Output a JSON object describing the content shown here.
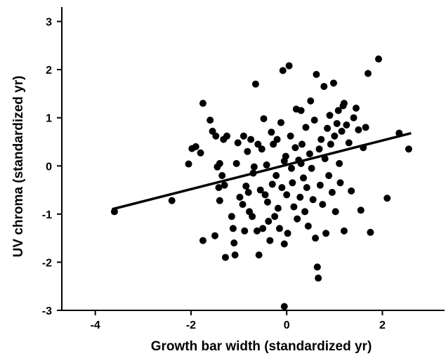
{
  "chart_data": {
    "type": "scatter",
    "title": "",
    "xlabel": "Growth bar width (standardized yr)",
    "ylabel": "UV chroma (standardized yr)",
    "xlim": [
      -4.7,
      3.3
    ],
    "ylim": [
      -3,
      3.3
    ],
    "x_ticks": [
      "-4",
      "-2",
      "0",
      "2"
    ],
    "y_ticks": [
      "-3",
      "-2",
      "-1",
      "0",
      "1",
      "2",
      "3"
    ],
    "grid": false,
    "colors": {
      "points": "#000000",
      "axes": "#000000"
    },
    "trend_line": {
      "x": [
        -3.65,
        2.6
      ],
      "y": [
        -0.9,
        0.68
      ]
    },
    "series": [
      {
        "points": [
          [
            -3.6,
            -0.95
          ],
          [
            -2.4,
            -0.72
          ],
          [
            -2.05,
            0.04
          ],
          [
            -1.98,
            0.36
          ],
          [
            -1.9,
            0.4
          ],
          [
            -1.8,
            0.27
          ],
          [
            -1.75,
            1.3
          ],
          [
            -1.75,
            -1.55
          ],
          [
            -1.6,
            0.95
          ],
          [
            -1.55,
            0.72
          ],
          [
            -1.48,
            0.62
          ],
          [
            -1.45,
            -0.02
          ],
          [
            -1.42,
            -0.45
          ],
          [
            -1.4,
            -0.72
          ],
          [
            -1.5,
            -1.45
          ],
          [
            -1.3,
            -0.4
          ],
          [
            -1.32,
            0.55
          ],
          [
            -1.28,
            -1.9
          ],
          [
            -1.25,
            0.62
          ],
          [
            -1.4,
            0.05
          ],
          [
            -1.35,
            -0.2
          ],
          [
            -1.15,
            -1.05
          ],
          [
            -1.12,
            -1.3
          ],
          [
            -1.1,
            -1.6
          ],
          [
            -1.08,
            -1.85
          ],
          [
            -1.05,
            0.05
          ],
          [
            -1.02,
            0.48
          ],
          [
            -0.98,
            -0.65
          ],
          [
            -0.92,
            -0.8
          ],
          [
            -0.9,
            0.62
          ],
          [
            -0.88,
            -1.35
          ],
          [
            -0.85,
            -0.42
          ],
          [
            -0.82,
            0.3
          ],
          [
            -0.8,
            -0.55
          ],
          [
            -0.78,
            -0.95
          ],
          [
            -0.75,
            0.55
          ],
          [
            -0.72,
            -1.05
          ],
          [
            -0.7,
            -0.15
          ],
          [
            -0.68,
            -0.02
          ],
          [
            -0.65,
            1.7
          ],
          [
            -0.62,
            -1.35
          ],
          [
            -0.6,
            0.45
          ],
          [
            -0.58,
            -1.85
          ],
          [
            -0.55,
            -0.5
          ],
          [
            -0.52,
            0.35
          ],
          [
            -0.5,
            -1.3
          ],
          [
            -0.48,
            0.98
          ],
          [
            -0.45,
            -0.6
          ],
          [
            -0.42,
            0.02
          ],
          [
            -0.4,
            -0.75
          ],
          [
            -0.38,
            -1.15
          ],
          [
            -0.35,
            -1.55
          ],
          [
            -0.32,
            0.7
          ],
          [
            -0.3,
            -0.38
          ],
          [
            -0.28,
            0.45
          ],
          [
            -0.25,
            -1.05
          ],
          [
            -0.22,
            -0.2
          ],
          [
            -0.2,
            0.55
          ],
          [
            -0.18,
            -0.88
          ],
          [
            -0.15,
            -1.3
          ],
          [
            -0.12,
            0.9
          ],
          [
            -0.1,
            -0.45
          ],
          [
            -0.08,
            1.98
          ],
          [
            -0.05,
            -1.62
          ],
          [
            -0.05,
            0.1
          ],
          [
            -0.02,
            0.2
          ],
          [
            0.0,
            -0.6
          ],
          [
            0.02,
            -1.4
          ],
          [
            0.05,
            2.08
          ],
          [
            0.08,
            0.62
          ],
          [
            0.1,
            -0.05
          ],
          [
            0.12,
            -0.35
          ],
          [
            0.15,
            -0.85
          ],
          [
            0.18,
            0.38
          ],
          [
            0.2,
            1.18
          ],
          [
            0.22,
            -1.1
          ],
          [
            0.25,
            0.12
          ],
          [
            0.28,
            -0.65
          ],
          [
            0.3,
            1.15
          ],
          [
            0.32,
            0.45
          ],
          [
            0.35,
            -0.25
          ],
          [
            0.38,
            -0.95
          ],
          [
            0.4,
            0.8
          ],
          [
            0.42,
            -0.45
          ],
          [
            0.45,
            -1.25
          ],
          [
            0.48,
            0.25
          ],
          [
            0.5,
            1.35
          ],
          [
            0.52,
            -0.05
          ],
          [
            0.55,
            -0.7
          ],
          [
            0.58,
            0.95
          ],
          [
            0.6,
            -1.5
          ],
          [
            0.62,
            1.9
          ],
          [
            0.64,
            -2.1
          ],
          [
            0.66,
            -2.33
          ],
          [
            0.68,
            0.35
          ],
          [
            0.7,
            -0.4
          ],
          [
            0.72,
            0.55
          ],
          [
            0.75,
            -0.8
          ],
          [
            0.78,
            1.65
          ],
          [
            0.8,
            0.15
          ],
          [
            0.82,
            -1.4
          ],
          [
            0.85,
            0.78
          ],
          [
            0.88,
            -0.2
          ],
          [
            0.9,
            1.05
          ],
          [
            0.92,
            0.45
          ],
          [
            0.95,
            -0.55
          ],
          [
            0.98,
            1.72
          ],
          [
            1.0,
            0.62
          ],
          [
            1.02,
            -0.95
          ],
          [
            1.05,
            0.88
          ],
          [
            1.08,
            1.15
          ],
          [
            1.1,
            0.05
          ],
          [
            1.12,
            -0.35
          ],
          [
            1.15,
            0.72
          ],
          [
            1.18,
            1.25
          ],
          [
            1.2,
            -1.35
          ],
          [
            1.25,
            0.85
          ],
          [
            1.3,
            0.48
          ],
          [
            1.35,
            -0.52
          ],
          [
            1.4,
            1.0
          ],
          [
            1.45,
            1.2
          ],
          [
            1.5,
            0.75
          ],
          [
            1.55,
            -0.92
          ],
          [
            1.6,
            0.38
          ],
          [
            1.65,
            0.8
          ],
          [
            1.7,
            1.92
          ],
          [
            1.75,
            -1.38
          ],
          [
            1.92,
            2.22
          ],
          [
            2.1,
            -0.67
          ],
          [
            2.35,
            0.68
          ],
          [
            2.55,
            0.35
          ],
          [
            -0.05,
            -2.92
          ],
          [
            1.2,
            1.3
          ],
          [
            0.3,
            0.05
          ]
        ]
      }
    ]
  }
}
